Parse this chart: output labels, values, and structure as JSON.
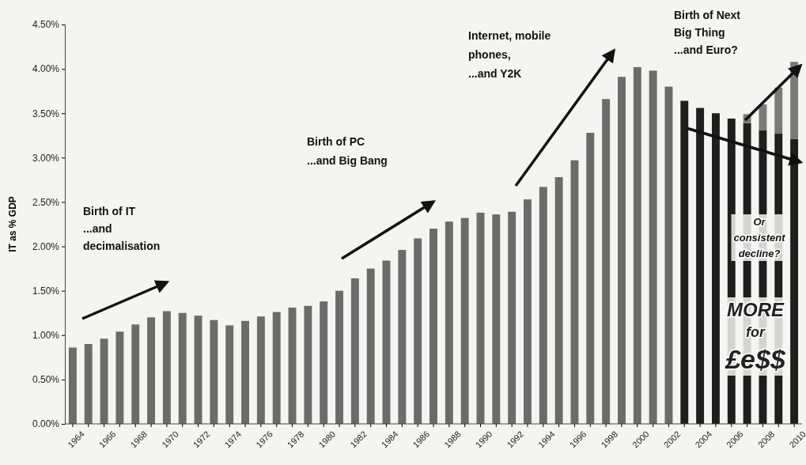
{
  "chart_data": {
    "type": "bar",
    "stacked": true,
    "ylabel": "IT as % GDP",
    "categories": [
      "1964",
      null,
      "1966",
      null,
      "1968",
      null,
      "1970",
      null,
      "1972",
      null,
      "1974",
      null,
      "1976",
      null,
      "1978",
      null,
      "1980",
      null,
      "1982",
      null,
      "1984",
      null,
      "1986",
      null,
      "1988",
      null,
      "1990",
      null,
      "1992",
      null,
      "1994",
      null,
      "1996",
      null,
      "1998",
      null,
      "2000",
      null,
      "2002",
      null,
      "2004",
      null,
      "2006",
      null,
      "2008",
      null,
      "2010"
    ],
    "series": [
      {
        "color": "#6b6b6b",
        "values": [
          0.86,
          0.9,
          0.96,
          1.04,
          1.12,
          1.2,
          1.27,
          1.25,
          1.22,
          1.17,
          1.11,
          1.16,
          1.21,
          1.26,
          1.31,
          1.33,
          1.38,
          1.5,
          1.64,
          1.75,
          1.84,
          1.96,
          2.09,
          2.2,
          2.28,
          2.32,
          2.38,
          2.36,
          2.39,
          2.53,
          2.67,
          2.78,
          2.97,
          3.28,
          3.66,
          3.91,
          4.02,
          3.98,
          3.8,
          null,
          null,
          null,
          null,
          null,
          null,
          null,
          null
        ]
      },
      {
        "color": "#1e1e1e",
        "values": [
          null,
          null,
          null,
          null,
          null,
          null,
          null,
          null,
          null,
          null,
          null,
          null,
          null,
          null,
          null,
          null,
          null,
          null,
          null,
          null,
          null,
          null,
          null,
          null,
          null,
          null,
          null,
          null,
          null,
          null,
          null,
          null,
          null,
          null,
          null,
          null,
          null,
          null,
          null,
          3.64,
          3.56,
          3.5,
          3.44,
          3.39,
          3.31,
          3.27,
          3.21
        ]
      },
      {
        "color": "#7a7a7a",
        "values": [
          null,
          null,
          null,
          null,
          null,
          null,
          null,
          null,
          null,
          null,
          null,
          null,
          null,
          null,
          null,
          null,
          null,
          null,
          null,
          null,
          null,
          null,
          null,
          null,
          null,
          null,
          null,
          null,
          null,
          null,
          null,
          null,
          null,
          null,
          null,
          null,
          null,
          null,
          null,
          null,
          null,
          null,
          null,
          0.1,
          0.29,
          0.52,
          0.87
        ]
      }
    ],
    "ylim": [
      0,
      4.5
    ],
    "yticks": [
      {
        "value": 0,
        "label": "0.00%"
      },
      {
        "value": 0.5,
        "label": "0.50%"
      },
      {
        "value": 1,
        "label": "1.00%"
      },
      {
        "value": 1.5,
        "label": "1.50%"
      },
      {
        "value": 2,
        "label": "2.00%"
      },
      {
        "value": 2.5,
        "label": "2.50%"
      },
      {
        "value": 3,
        "label": "3.00%"
      },
      {
        "value": 3.5,
        "label": "3.50%"
      },
      {
        "value": 4,
        "label": "4.00%"
      },
      {
        "value": 4.5,
        "label": "4.50%"
      }
    ],
    "grid": false,
    "annotations": [
      "Birth of IT\n...and\ndecimalisation",
      "Birth of PC\n...and Big Bang",
      "Internet, mobile\nphones,\n...and Y2K",
      "Birth of Next\nBig Thing\n...and Euro?",
      "Or\nconsistent\ndecline?",
      "MORE\nfor\n£e$$"
    ]
  }
}
